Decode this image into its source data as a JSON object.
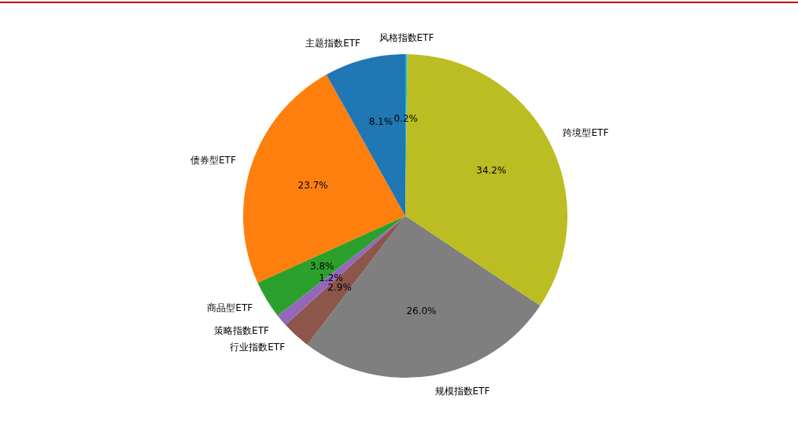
{
  "chart_data": {
    "type": "pie",
    "categories": [
      "风格指数ETF",
      "跨境型ETF",
      "规模指数ETF",
      "行业指数ETF",
      "策略指数ETF",
      "商品型ETF",
      "债券型ETF",
      "主题指数ETF"
    ],
    "values": [
      0.2,
      34.2,
      26.0,
      2.9,
      1.2,
      3.8,
      23.7,
      8.1
    ],
    "colors": [
      "#17becf",
      "#bcbd22",
      "#7f7f7f",
      "#8c564b",
      "#9467bd",
      "#2ca02c",
      "#ff7f0e",
      "#1f77b4"
    ],
    "value_labels": [
      "0.2%",
      "34.2%",
      "26.0%",
      "2.9%",
      "1.2%",
      "3.8%",
      "23.7%",
      "8.1%"
    ]
  }
}
